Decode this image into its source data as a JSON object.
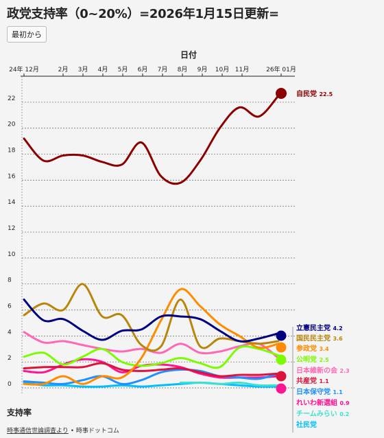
{
  "page": {
    "title": "政党支持率（0~20%）=2026年1月15日更新=",
    "reset_label": "最初から",
    "source_link": "時事通信世論調査より",
    "source_sep": "•",
    "source_publisher": "時事ドットコム"
  },
  "chart_data": {
    "type": "line",
    "xlabel": "日付",
    "ylabel": "支持率",
    "ylim": [
      0,
      23
    ],
    "yticks": [
      0,
      2,
      4,
      6,
      8,
      10,
      12,
      14,
      16,
      18,
      20,
      22
    ],
    "x_tick_labels": [
      "24年 12月",
      "2月",
      "3月",
      "4月",
      "5月",
      "6月",
      "7月",
      "8月",
      "9月",
      "10月",
      "11月",
      "26年 01月"
    ],
    "x": [
      0,
      1,
      2,
      3,
      4,
      5,
      6,
      7,
      8,
      9,
      10,
      11,
      12,
      13
    ],
    "grid": true,
    "series": [
      {
        "name": "自民党",
        "color": "#8b0000",
        "label_value": "22.5",
        "values": [
          19.2,
          17.5,
          17.9,
          17.9,
          17.4,
          17.2,
          18.9,
          16.3,
          15.8,
          17.5,
          20.0,
          21.6,
          20.9,
          22.5
        ]
      },
      {
        "name": "立憲民主党",
        "color": "#000080",
        "label_value": "4.2",
        "values": [
          6.8,
          5.2,
          5.3,
          4.4,
          3.7,
          4.4,
          4.5,
          5.5,
          5.5,
          5.3,
          4.4,
          3.6,
          3.8,
          4.2
        ]
      },
      {
        "name": "国民民主党",
        "color": "#b8860b",
        "label_value": "3.6",
        "values": [
          5.6,
          6.5,
          6.0,
          8.0,
          5.5,
          5.6,
          3.3,
          3.2,
          6.8,
          3.2,
          3.8,
          3.6,
          3.4,
          3.6
        ]
      },
      {
        "name": "参政党",
        "color": "#ff8c00",
        "label_value": "3.4",
        "values": [
          0.3,
          0.3,
          0.9,
          0.3,
          0.9,
          0.8,
          2.3,
          5.2,
          7.6,
          6.3,
          4.9,
          4.0,
          3.1,
          3.4
        ]
      },
      {
        "name": "公明党",
        "color": "#7cfc00",
        "label_value": "2.5",
        "values": [
          2.4,
          2.7,
          1.8,
          2.4,
          3.0,
          2.0,
          1.7,
          1.9,
          2.3,
          1.9,
          1.6,
          3.1,
          3.0,
          2.5
        ]
      },
      {
        "name": "日本維新の会",
        "color": "#ff69b4",
        "label_value": "2.3",
        "values": [
          4.3,
          3.5,
          3.6,
          3.3,
          3.0,
          2.8,
          3.0,
          2.7,
          3.4,
          2.7,
          2.8,
          3.2,
          3.4,
          2.3
        ]
      },
      {
        "name": "共産党",
        "color": "#dc143c",
        "label_value": "1.1",
        "values": [
          1.5,
          1.6,
          1.6,
          1.6,
          1.9,
          1.4,
          1.3,
          1.4,
          1.5,
          1.2,
          0.9,
          1.0,
          1.0,
          1.1
        ]
      },
      {
        "name": "日本保守党",
        "color": "#1e90ff",
        "label_value": "1.1",
        "values": [
          0.5,
          0.4,
          0.3,
          0.6,
          0.9,
          0.3,
          0.6,
          1.2,
          1.4,
          1.3,
          0.9,
          0.8,
          0.7,
          1.1
        ]
      },
      {
        "name": "れいわ新選組",
        "color": "#ff1493",
        "label_value": "0.9",
        "values": [
          1.3,
          1.2,
          1.8,
          2.2,
          2.0,
          1.2,
          1.7,
          1.8,
          1.6,
          1.1,
          0.8,
          0.8,
          0.8,
          0.9
        ]
      },
      {
        "name": "チームみらい",
        "color": "#40e0d0",
        "label_value": "0.2",
        "values": [
          null,
          null,
          null,
          null,
          null,
          null,
          null,
          null,
          0.4,
          0.4,
          0.3,
          0.4,
          0.2,
          0.2
        ]
      },
      {
        "name": "社民党",
        "color": "#00bfff",
        "label_value": "",
        "values": [
          0.4,
          0.2,
          0.2,
          0.1,
          0.1,
          0.2,
          0.1,
          0.2,
          0.3,
          0.4,
          0.3,
          0.2,
          0.1,
          0.1
        ]
      }
    ]
  }
}
